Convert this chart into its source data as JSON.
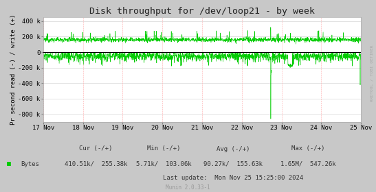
{
  "title": "Disk throughput for /dev/loop21 - by week",
  "ylabel": "Pr second read (-) / write (+)",
  "fig_bg_color": "#c8c8c8",
  "plot_bg_color": "#ffffff",
  "grid_color_h": "#cccccc",
  "grid_color_v": "#ffaaaa",
  "line_color": "#00cc00",
  "zero_line_color": "#000000",
  "ylim": [
    -900000,
    450000
  ],
  "yticks": [
    -800000,
    -600000,
    -400000,
    -200000,
    0,
    200000,
    400000
  ],
  "ytick_labels": [
    "-800 k",
    "-600 k",
    "-400 k",
    "-200 k",
    "0",
    "200 k",
    "400 k"
  ],
  "xticklabels": [
    "17 Nov",
    "18 Nov",
    "19 Nov",
    "20 Nov",
    "21 Nov",
    "22 Nov",
    "23 Nov",
    "24 Nov",
    "25 Nov"
  ],
  "legend_label": "Bytes",
  "legend_color": "#00cc00",
  "stats_header": "        Cur (-/+)         Min (-/+)         Avg (-/+)         Max (-/+)",
  "stats_line1": "   Bytes   410.51k/  255.38k     5.71k/  103.06k    90.27k/  155.63k     1.65M/  547.26k",
  "last_update": "Last update:  Mon Nov 25 15:25:00 2024",
  "munin_label": "Munin 2.0.33-1",
  "rrdtool_label": "RRDTOOL / TOBI OETIKER",
  "n_points": 2016
}
